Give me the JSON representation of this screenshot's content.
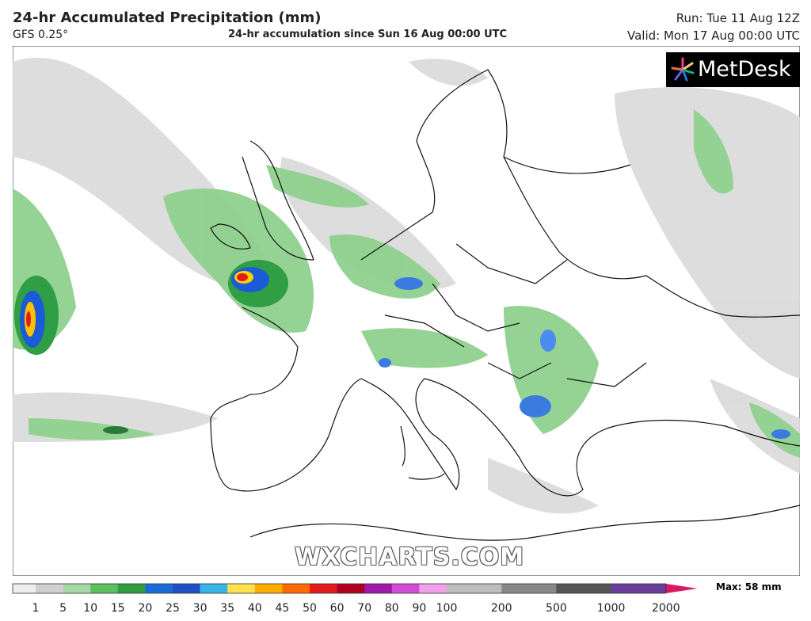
{
  "header": {
    "title": "24-hr Accumulated Precipitation (mm)",
    "model": "GFS 0.25°",
    "subtitle": "24-hr accumulation since Sun 16 Aug 00:00 UTC",
    "run": "Run: Tue 11 Aug 12Z",
    "valid": "Valid: Mon 17 Aug 00:00 UTC"
  },
  "logo": "MetDesk",
  "watermark": "WXCHARTS.COM",
  "legend": {
    "labels": [
      1,
      5,
      10,
      15,
      20,
      25,
      30,
      35,
      40,
      45,
      50,
      60,
      70,
      80,
      90,
      100,
      200,
      500,
      1000,
      2000
    ],
    "max": "Max: 58 mm"
  }
}
